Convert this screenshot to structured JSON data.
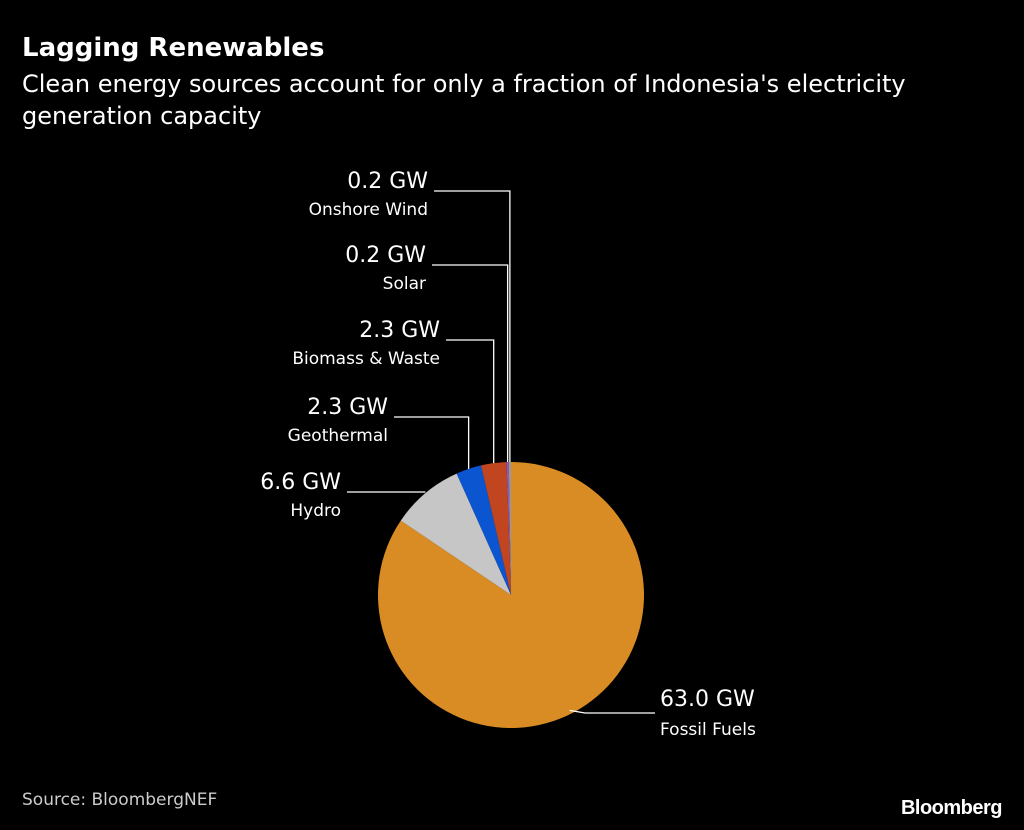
{
  "chart_data": {
    "type": "pie",
    "title": "Lagging Renewables",
    "subtitle": "Clean energy sources account for only a fraction of Indonesia's electricity generation capacity",
    "unit": "GW",
    "slices": [
      {
        "name": "Fossil Fuels",
        "value": 63.0,
        "label": "63.0 GW",
        "color": "#d98b24"
      },
      {
        "name": "Hydro",
        "value": 6.6,
        "label": "6.6 GW",
        "color": "#c6c6c6"
      },
      {
        "name": "Geothermal",
        "value": 2.3,
        "label": "2.3 GW",
        "color": "#0b56d0"
      },
      {
        "name": "Biomass & Waste",
        "value": 2.3,
        "label": "2.3 GW",
        "color": "#c1451f"
      },
      {
        "name": "Solar",
        "value": 0.2,
        "label": "0.2 GW",
        "color": "#8a5cc0"
      },
      {
        "name": "Onshore Wind",
        "value": 0.2,
        "label": "0.2 GW",
        "color": "#9a9a9a"
      }
    ],
    "source": "Source: BloombergNEF"
  },
  "brand": "Bloomberg"
}
